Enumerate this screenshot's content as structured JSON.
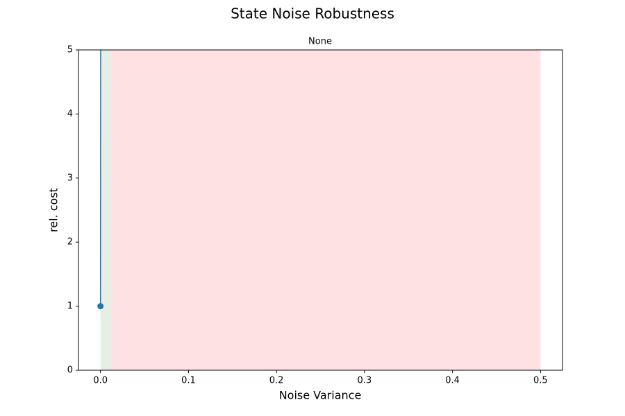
{
  "chart_data": {
    "type": "line",
    "title": "State Noise Robustness",
    "subtitle": "None",
    "x_label": "Noise Variance",
    "y_label": "rel. cost",
    "x": [
      0,
      0.0005
    ],
    "series": [
      {
        "color": "#1f77b4",
        "values": [
          1,
          10
        ]
      }
    ],
    "spans": [
      {
        "from": 0,
        "to": 0.0125,
        "color": "#e5efe5"
      },
      {
        "from": 0.0125,
        "to": 0.5,
        "color": "#fde1e3"
      }
    ],
    "xlim": [
      -0.025,
      0.525
    ],
    "ylim": [
      0,
      5
    ],
    "xticks": [
      {
        "value": 0,
        "label": "0.0"
      },
      0.1,
      0.2,
      0.3,
      0.4,
      0.5
    ],
    "yticks": [
      0,
      1,
      2,
      3,
      4,
      5
    ],
    "grid": false
  }
}
